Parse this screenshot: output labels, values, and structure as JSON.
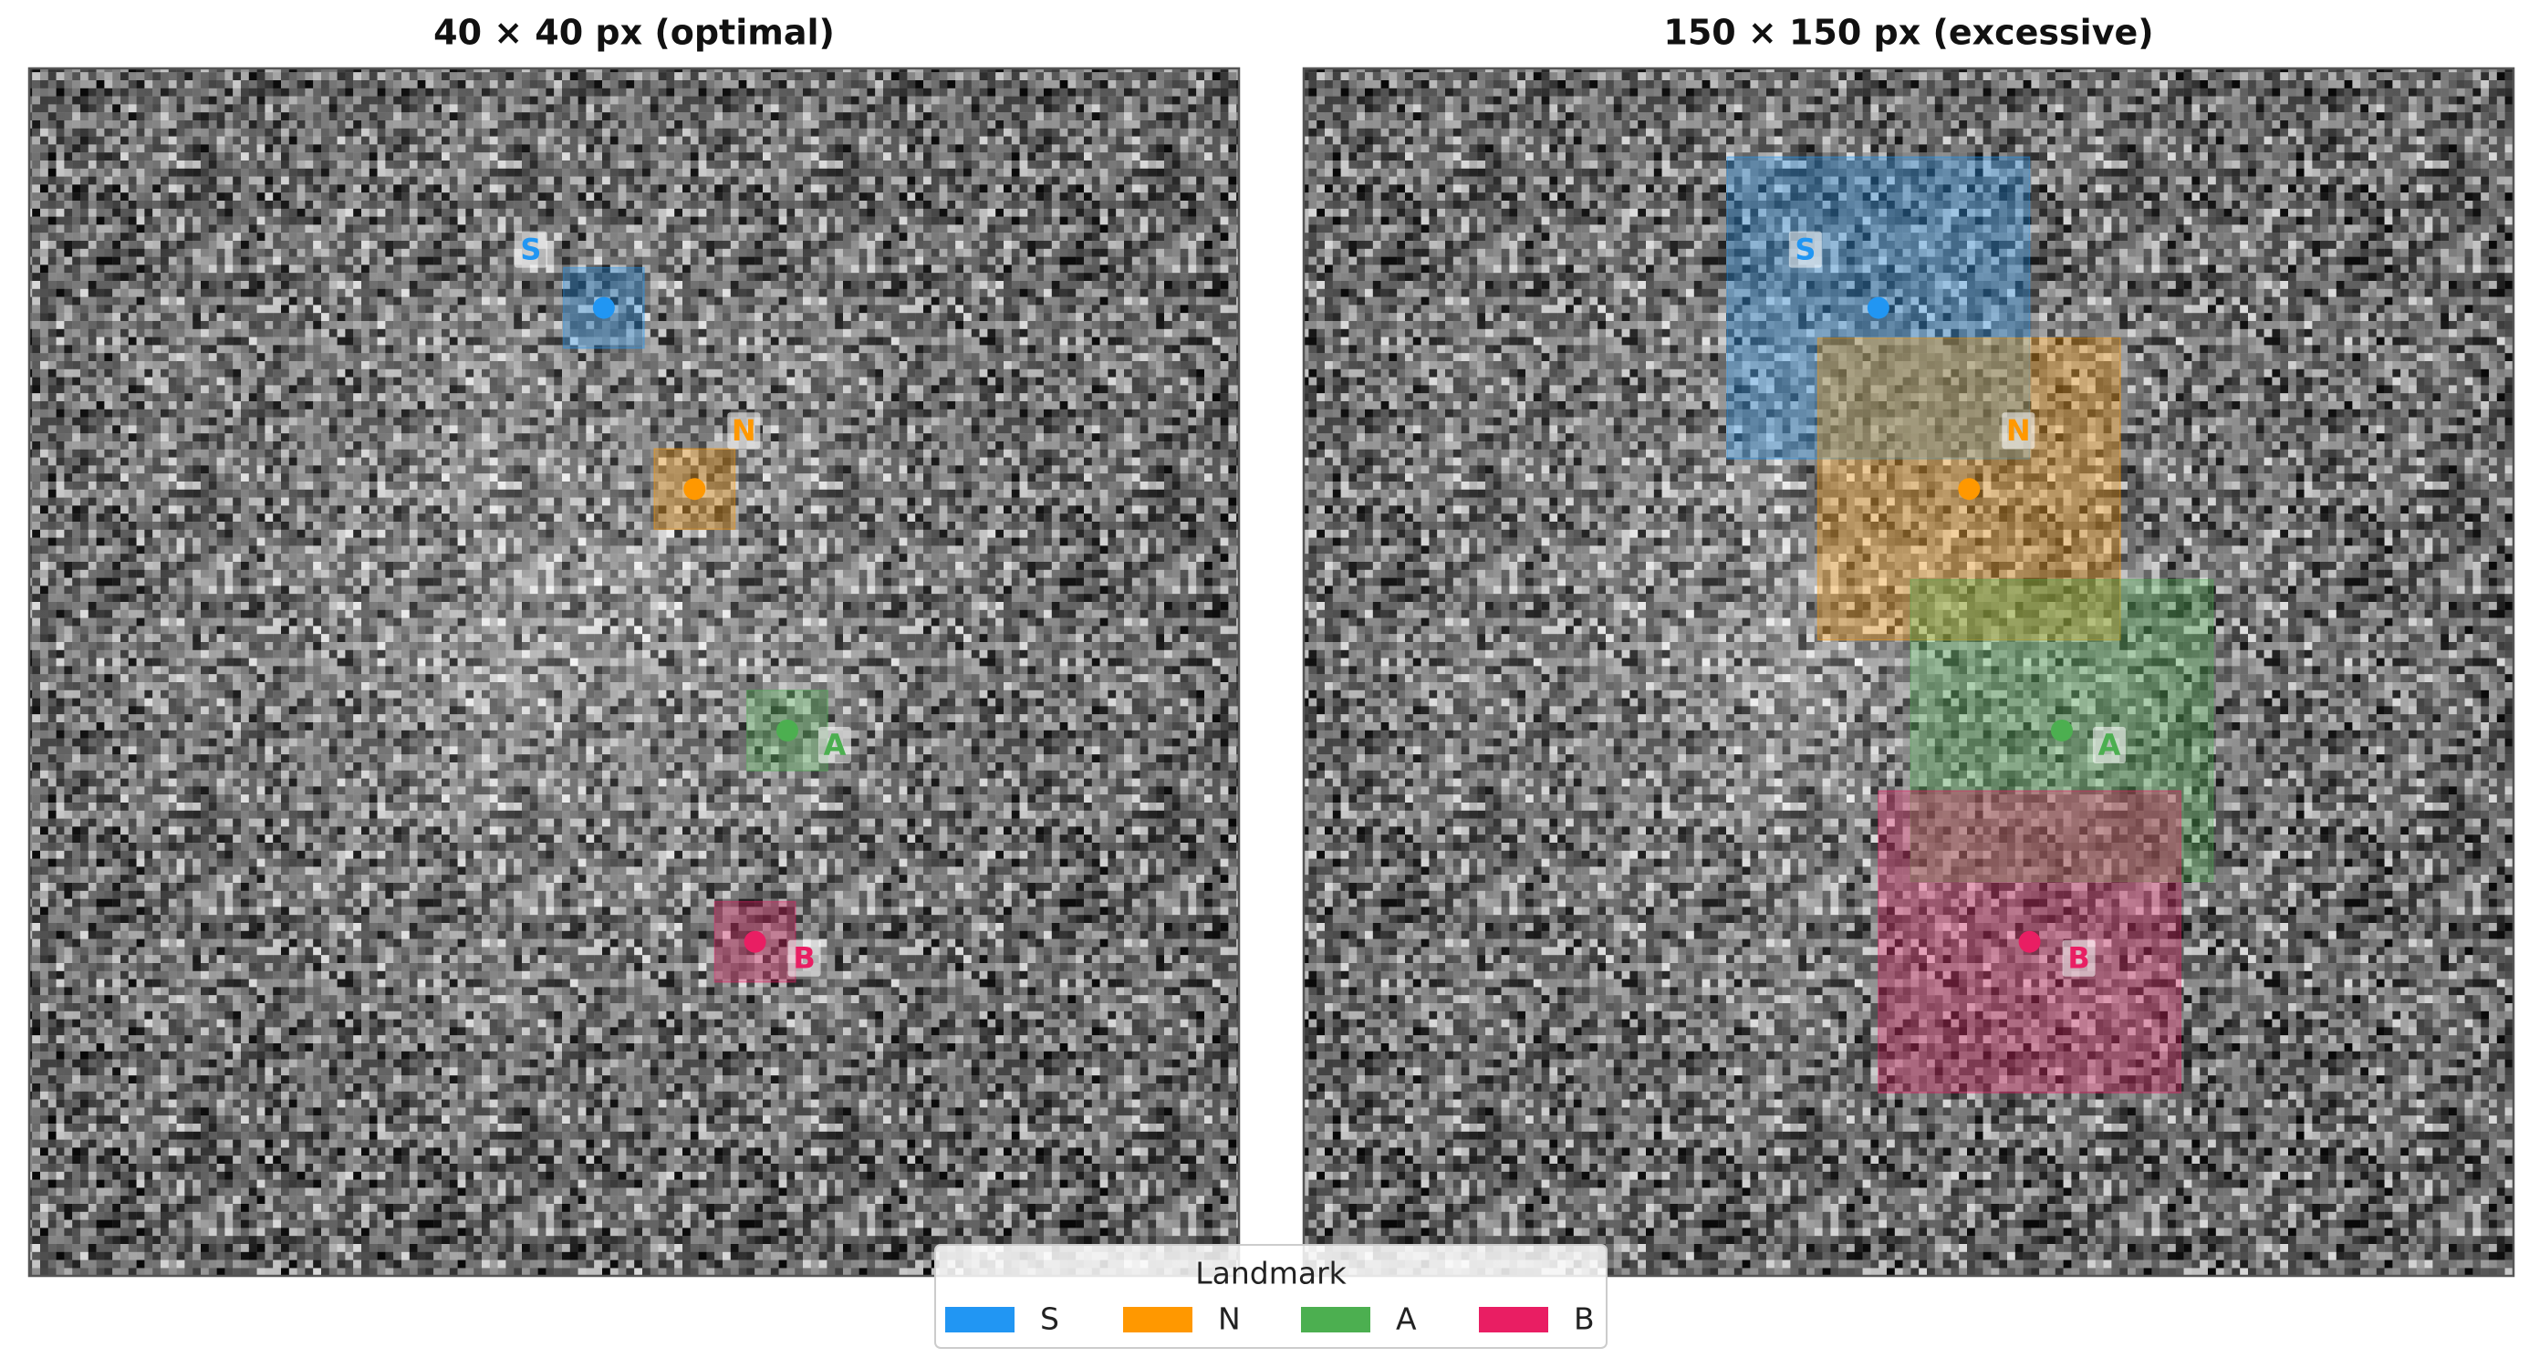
{
  "chart_data": [
    {
      "type": "landmark",
      "title": "40 × 40 px  (optimal)",
      "box_size": 40,
      "xlim": [
        0,
        600
      ],
      "ylim": [
        600,
        0
      ],
      "series": [
        {
          "name": "S",
          "color": "#2196f3",
          "x": 285,
          "y": 119
        },
        {
          "name": "N",
          "color": "#ff9800",
          "x": 330,
          "y": 209
        },
        {
          "name": "A",
          "color": "#4caf50",
          "x": 376,
          "y": 329
        },
        {
          "name": "B",
          "color": "#e91e63",
          "x": 360,
          "y": 434
        }
      ]
    },
    {
      "type": "landmark",
      "title": "150 × 150 px  (excessive)",
      "box_size": 150,
      "xlim": [
        0,
        600
      ],
      "ylim": [
        600,
        0
      ],
      "series": [
        {
          "name": "S",
          "color": "#2196f3",
          "x": 285,
          "y": 119
        },
        {
          "name": "N",
          "color": "#ff9800",
          "x": 330,
          "y": 209
        },
        {
          "name": "A",
          "color": "#4caf50",
          "x": 376,
          "y": 329
        },
        {
          "name": "B",
          "color": "#e91e63",
          "x": 360,
          "y": 434
        }
      ]
    }
  ],
  "legend": {
    "title": "Landmark"
  }
}
